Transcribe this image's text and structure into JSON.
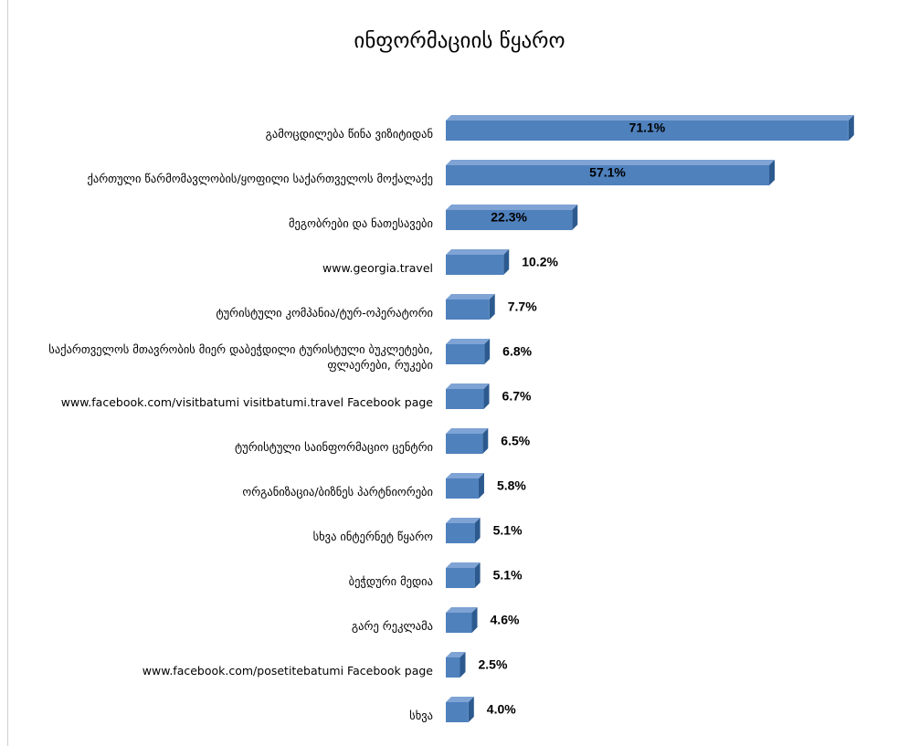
{
  "chart_data": {
    "type": "bar",
    "orientation": "horizontal",
    "title": "ინფორმაციის წყარო",
    "categories": [
      "გამოცდილება წინა ვიზიტიდან",
      "ქართული წარმომავლობის/ყოფილი საქართველოს მოქალაქე",
      "მეგობრები და ნათესავები",
      "www.georgia.travel",
      "ტურისტული კომპანია/ტურ-ოპერატორი",
      "საქართველოს მთავრობის მიერ დაბეჭდილი ტურისტული ბუკლეტები, ფლაერები, რუკები",
      "www.facebook.com/visitbatumi visitbatumi.travel Facebook page",
      "ტურისტული საინფორმაციო ცენტრი",
      "ორგანიზაცია/ბიზნეს პარტნიორები",
      "სხვა ინტერნეტ წყარო",
      "ბეჭდური მედია",
      "გარე რეკლამა",
      "www.facebook.com/posetitebatumi Facebook page",
      "სხვა"
    ],
    "values": [
      71.1,
      57.1,
      22.3,
      10.2,
      7.7,
      6.8,
      6.7,
      6.5,
      5.8,
      5.1,
      5.1,
      4.6,
      2.5,
      4.0
    ],
    "value_labels": [
      "71.1%",
      "57.1%",
      "22.3%",
      "10.2%",
      "7.7%",
      "6.8%",
      "6.7%",
      "6.5%",
      "5.8%",
      "5.1%",
      "5.1%",
      "4.6%",
      "2.5%",
      "4.0%"
    ],
    "color": "#4f81bd"
  }
}
